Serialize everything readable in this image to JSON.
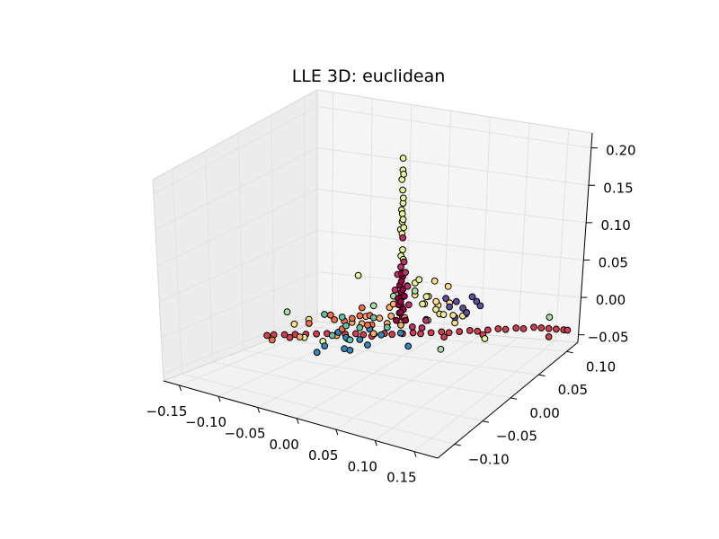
{
  "chart_data": {
    "type": "scatter",
    "title": "LLE 3D: euclidean",
    "projection": "3d",
    "grid": true,
    "legend": false,
    "x_axis": {
      "ticks": [
        -0.15,
        -0.1,
        -0.05,
        0.0,
        0.05,
        0.1,
        0.15
      ],
      "tick_labels": [
        "−0.15",
        "−0.10",
        "−0.05",
        "0.00",
        "0.05",
        "0.10",
        "0.15"
      ],
      "range": [
        -0.17,
        0.18
      ]
    },
    "y_axis": {
      "ticks": [
        -0.1,
        -0.05,
        0.0,
        0.05,
        0.1
      ],
      "tick_labels": [
        "−0.10",
        "−0.05",
        "0.00",
        "0.05",
        "0.10"
      ],
      "range": [
        -0.13,
        0.12
      ]
    },
    "z_axis": {
      "ticks": [
        -0.05,
        0.0,
        0.05,
        0.1,
        0.15,
        0.2
      ],
      "tick_labels": [
        "−0.05",
        "0.00",
        "0.05",
        "0.10",
        "0.15",
        "0.20"
      ],
      "range": [
        -0.06,
        0.22
      ]
    },
    "colors": {
      "red": "#d53e4f",
      "orange": "#f46d43",
      "light_orange": "#fdae61",
      "yellow": "#fee08b",
      "light_green": "#e6f598",
      "green": "#abdda4",
      "teal": "#66c2a5",
      "blue": "#3288bd",
      "purple": "#5e4fa2",
      "magenta": "#9e0142",
      "pink": "#c2306b"
    },
    "series": [
      {
        "color_key": "red",
        "points": [
          [
            -0.155,
            0.02,
            -0.045
          ],
          [
            -0.15,
            0.025,
            -0.045
          ],
          [
            -0.14,
            0.03,
            -0.045
          ],
          [
            -0.13,
            0.035,
            -0.045
          ],
          [
            -0.12,
            0.04,
            -0.045
          ],
          [
            -0.11,
            0.045,
            -0.045
          ],
          [
            -0.1,
            0.05,
            -0.045
          ],
          [
            -0.09,
            0.055,
            -0.045
          ],
          [
            -0.08,
            0.055,
            -0.045
          ],
          [
            -0.07,
            0.06,
            -0.045
          ],
          [
            -0.06,
            0.06,
            -0.045
          ],
          [
            -0.05,
            0.065,
            -0.045
          ],
          [
            -0.04,
            0.07,
            -0.045
          ],
          [
            -0.03,
            0.07,
            -0.045
          ],
          [
            -0.02,
            0.075,
            -0.045
          ],
          [
            -0.01,
            0.08,
            -0.045
          ],
          [
            0.0,
            0.08,
            -0.045
          ],
          [
            0.01,
            0.085,
            -0.045
          ],
          [
            0.02,
            0.09,
            -0.045
          ],
          [
            0.03,
            0.09,
            -0.045
          ],
          [
            0.04,
            0.095,
            -0.045
          ],
          [
            0.05,
            0.1,
            -0.045
          ],
          [
            0.06,
            0.1,
            -0.045
          ],
          [
            0.07,
            0.105,
            -0.045
          ],
          [
            0.08,
            0.11,
            -0.045
          ],
          [
            0.09,
            0.11,
            -0.045
          ],
          [
            0.1,
            0.115,
            -0.045
          ],
          [
            0.11,
            0.115,
            -0.045
          ],
          [
            0.12,
            0.12,
            -0.045
          ],
          [
            0.13,
            0.12,
            -0.045
          ],
          [
            0.14,
            0.12,
            -0.045
          ],
          [
            0.15,
            0.12,
            -0.045
          ],
          [
            0.16,
            0.12,
            -0.045
          ],
          [
            0.165,
            0.12,
            -0.045
          ],
          [
            -0.125,
            0.02,
            -0.043
          ],
          [
            -0.065,
            0.04,
            -0.043
          ],
          [
            -0.045,
            0.055,
            -0.043
          ],
          [
            0.035,
            0.075,
            -0.043
          ],
          [
            0.075,
            0.09,
            -0.043
          ],
          [
            0.155,
            0.1,
            -0.043
          ]
        ]
      },
      {
        "color_key": "magenta",
        "points": [
          [
            0.02,
            0.02,
            0.05
          ],
          [
            0.018,
            0.02,
            0.045
          ],
          [
            0.022,
            0.02,
            0.04
          ],
          [
            0.019,
            0.021,
            0.035
          ],
          [
            0.021,
            0.02,
            0.03
          ],
          [
            0.02,
            0.019,
            0.025
          ],
          [
            0.017,
            0.02,
            0.02
          ],
          [
            0.023,
            0.02,
            0.015
          ],
          [
            0.018,
            0.02,
            0.01
          ],
          [
            0.022,
            0.02,
            0.005
          ],
          [
            0.02,
            0.022,
            0.055
          ],
          [
            0.024,
            0.02,
            0.032
          ],
          [
            0.016,
            0.02,
            0.028
          ],
          [
            0.021,
            0.018,
            0.012
          ],
          [
            0.019,
            0.022,
            0.018
          ],
          [
            0.026,
            0.02,
            0.002
          ],
          [
            0.014,
            0.02,
            0.0
          ],
          [
            0.02,
            0.02,
            0.06
          ]
        ]
      },
      {
        "color_key": "pink",
        "points": [
          [
            0.021,
            0.02,
            0.105
          ],
          [
            0.023,
            0.02,
            0.075
          ],
          [
            0.019,
            0.02,
            0.068
          ],
          [
            0.025,
            0.02,
            0.062
          ],
          [
            0.015,
            0.02,
            0.058
          ],
          [
            0.028,
            0.02,
            0.045
          ],
          [
            0.012,
            0.02,
            0.038
          ],
          [
            0.03,
            0.02,
            0.022
          ],
          [
            0.045,
            0.03,
            0.0
          ],
          [
            0.04,
            0.03,
            -0.01
          ],
          [
            0.035,
            0.02,
            -0.005
          ]
        ]
      },
      {
        "color_key": "light_green",
        "points": [
          [
            0.02,
            0.02,
            0.205
          ],
          [
            0.02,
            0.02,
            0.19
          ],
          [
            0.021,
            0.02,
            0.185
          ],
          [
            0.019,
            0.02,
            0.178
          ],
          [
            0.02,
            0.02,
            0.165
          ],
          [
            0.021,
            0.02,
            0.155
          ],
          [
            0.02,
            0.021,
            0.148
          ],
          [
            0.019,
            0.02,
            0.14
          ],
          [
            0.02,
            0.02,
            0.135
          ],
          [
            0.021,
            0.02,
            0.128
          ],
          [
            0.02,
            0.02,
            0.125
          ],
          [
            0.022,
            0.02,
            0.118
          ],
          [
            0.018,
            0.02,
            0.115
          ],
          [
            0.02,
            0.02,
            0.11
          ],
          [
            0.021,
            0.02,
            0.09
          ],
          [
            0.019,
            0.02,
            0.082
          ],
          [
            0.022,
            0.02,
            0.078
          ],
          [
            -0.02,
            0.0,
            0.06
          ],
          [
            0.03,
            0.03,
            0.045
          ],
          [
            0.04,
            0.03,
            0.02
          ],
          [
            0.05,
            0.04,
            0.01
          ],
          [
            0.045,
            0.03,
            0.03
          ],
          [
            0.06,
            0.04,
            0.005
          ],
          [
            0.035,
            0.03,
            0.05
          ],
          [
            -0.05,
            -0.02,
            -0.02
          ],
          [
            -0.09,
            0.0,
            -0.03
          ],
          [
            0.1,
            0.06,
            -0.03
          ]
        ]
      },
      {
        "color_key": "yellow",
        "points": [
          [
            0.03,
            0.03,
            0.03
          ],
          [
            0.04,
            0.04,
            0.025
          ],
          [
            0.05,
            0.04,
            0.02
          ],
          [
            0.045,
            0.05,
            0.01
          ],
          [
            0.06,
            0.05,
            0.015
          ],
          [
            0.055,
            0.04,
            0.005
          ],
          [
            0.065,
            0.05,
            0.0
          ],
          [
            0.035,
            0.04,
            0.015
          ],
          [
            0.07,
            0.06,
            -0.005
          ],
          [
            0.05,
            0.06,
            0.03
          ],
          [
            0.03,
            0.05,
            -0.01
          ],
          [
            0.06,
            0.06,
            -0.015
          ],
          [
            0.04,
            0.05,
            0.04
          ],
          [
            -0.06,
            -0.03,
            0.01
          ],
          [
            -0.095,
            -0.01,
            -0.01
          ]
        ]
      },
      {
        "color_key": "light_orange",
        "points": [
          [
            -0.01,
            0.0,
            0.01
          ],
          [
            0.0,
            0.01,
            0.005
          ],
          [
            0.01,
            0.01,
            0.0
          ],
          [
            -0.005,
            0.0,
            -0.005
          ],
          [
            0.005,
            0.02,
            0.015
          ],
          [
            0.015,
            0.01,
            0.01
          ],
          [
            -0.015,
            0.0,
            0.0
          ],
          [
            0.02,
            0.02,
            -0.005
          ],
          [
            0.0,
            0.0,
            -0.01
          ],
          [
            0.01,
            0.02,
            0.02
          ],
          [
            0.025,
            0.02,
            0.005
          ],
          [
            -0.02,
            -0.01,
            0.005
          ],
          [
            -0.08,
            -0.02,
            -0.02
          ],
          [
            -0.04,
            -0.01,
            -0.015
          ]
        ]
      },
      {
        "color_key": "orange",
        "points": [
          [
            -0.02,
            -0.01,
            0.01
          ],
          [
            -0.03,
            -0.01,
            0.005
          ],
          [
            -0.01,
            -0.01,
            0.015
          ],
          [
            -0.025,
            -0.02,
            0.0
          ],
          [
            -0.015,
            0.0,
            0.02
          ],
          [
            -0.035,
            -0.02,
            0.01
          ],
          [
            0.0,
            -0.01,
            0.005
          ],
          [
            -0.005,
            0.0,
            0.012
          ],
          [
            -0.04,
            -0.02,
            0.015
          ],
          [
            -0.06,
            -0.03,
            0.005
          ],
          [
            -0.1,
            -0.04,
            -0.02
          ],
          [
            -0.01,
            0.01,
            -0.005
          ]
        ]
      },
      {
        "color_key": "blue",
        "points": [
          [
            -0.02,
            -0.02,
            -0.01
          ],
          [
            -0.01,
            -0.01,
            -0.015
          ],
          [
            0.0,
            -0.01,
            -0.02
          ],
          [
            -0.03,
            -0.02,
            -0.005
          ],
          [
            0.01,
            0.0,
            -0.01
          ],
          [
            -0.015,
            -0.02,
            -0.025
          ],
          [
            -0.005,
            0.0,
            -0.005
          ],
          [
            -0.04,
            -0.03,
            -0.02
          ],
          [
            -0.03,
            -0.01,
            -0.03
          ],
          [
            0.03,
            0.02,
            -0.03
          ],
          [
            0.02,
            0.02,
            -0.015
          ],
          [
            -0.05,
            -0.03,
            -0.03
          ]
        ]
      },
      {
        "color_key": "teal",
        "points": [
          [
            -0.02,
            -0.02,
            0.005
          ],
          [
            -0.01,
            -0.01,
            0.0
          ],
          [
            -0.03,
            -0.03,
            -0.005
          ],
          [
            0.0,
            0.0,
            0.01
          ],
          [
            -0.04,
            -0.03,
            0.02
          ],
          [
            -0.025,
            -0.02,
            0.015
          ],
          [
            0.01,
            0.01,
            -0.005
          ],
          [
            -0.015,
            -0.02,
            -0.012
          ]
        ]
      },
      {
        "color_key": "green",
        "points": [
          [
            0.02,
            0.03,
            0.04
          ],
          [
            0.03,
            0.03,
            0.035
          ],
          [
            0.0,
            0.0,
            0.025
          ],
          [
            -0.08,
            -0.04,
            0.02
          ],
          [
            0.01,
            0.02,
            0.03
          ],
          [
            0.04,
            0.04,
            -0.005
          ],
          [
            0.14,
            0.12,
            -0.03
          ],
          [
            0.05,
            0.05,
            -0.045
          ]
        ]
      },
      {
        "color_key": "purple",
        "points": [
          [
            0.06,
            0.05,
            0.01
          ],
          [
            0.07,
            0.06,
            0.005
          ],
          [
            0.065,
            0.055,
            0.015
          ],
          [
            0.075,
            0.06,
            0.0
          ],
          [
            0.08,
            0.07,
            0.01
          ],
          [
            0.055,
            0.05,
            0.02
          ],
          [
            0.07,
            0.065,
            -0.005
          ],
          [
            0.085,
            0.07,
            0.005
          ],
          [
            0.06,
            0.06,
            -0.008
          ],
          [
            0.078,
            0.065,
            0.018
          ]
        ]
      }
    ]
  }
}
